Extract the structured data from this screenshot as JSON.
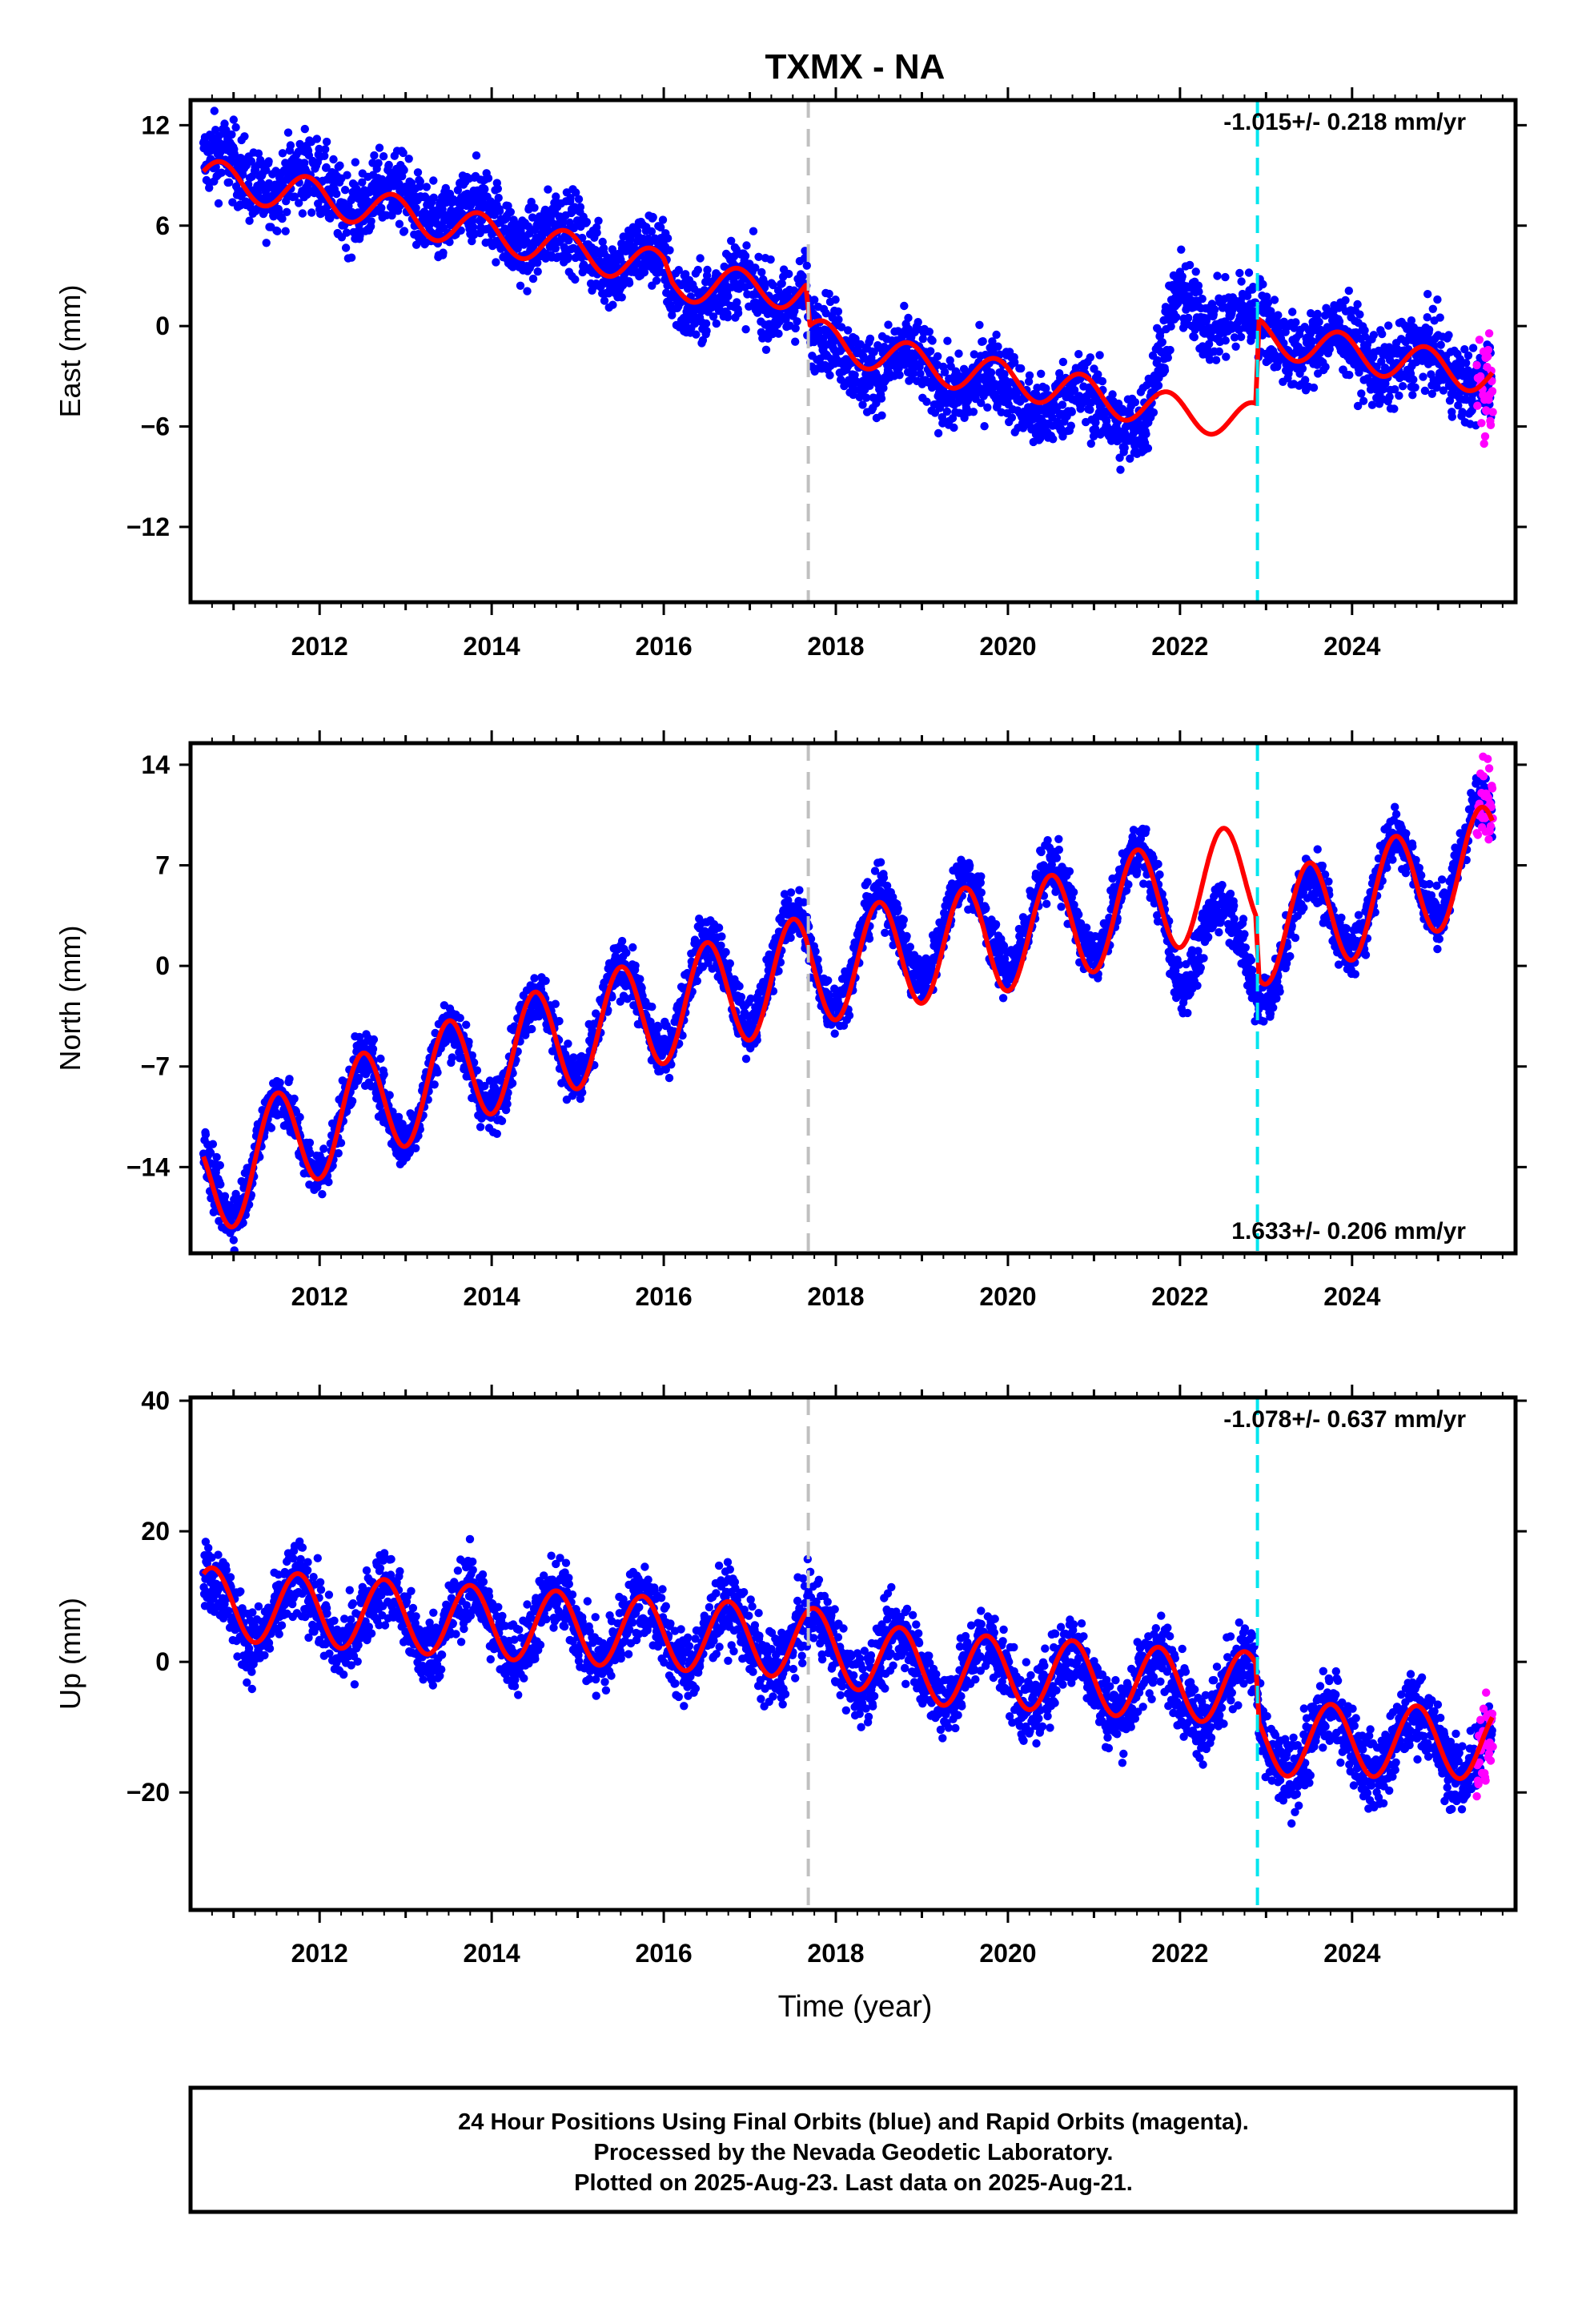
{
  "station_title": "TXMX - NA",
  "x_axis_label": "Time (year)",
  "footer": {
    "line1": "24 Hour Positions Using Final Orbits (blue) and Rapid Orbits (magenta).",
    "line2": "Processed by the Nevada Geodetic Laboratory.",
    "line3": "Plotted on 2025-Aug-23. Last data on 2025-Aug-21."
  },
  "colors": {
    "final_orbits": "#0000ff",
    "rapid_orbits": "#ff00ff",
    "model_fit": "#ff0000",
    "event_gray": "#c0c0c0",
    "event_cyan": "#00e5ee"
  },
  "chart_data": [
    {
      "type": "scatter",
      "component": "East",
      "ylabel": "East (mm)",
      "xlabel": "",
      "xlim": [
        2010.5,
        2025.9
      ],
      "ylim": [
        -16.5,
        13.5
      ],
      "x_ticks": [
        2012,
        2014,
        2016,
        2018,
        2020,
        2022,
        2024
      ],
      "y_ticks": [
        12,
        6,
        0,
        -6,
        -12
      ],
      "y_tick_labels": [
        "12",
        "6",
        "0",
        "−6",
        "−12"
      ],
      "rate_text": "-1.015+/- 0.218 mm/yr",
      "rate_position": "top-right",
      "vertical_lines": [
        {
          "x": 2017.68,
          "color": "gray",
          "style": "dashed"
        },
        {
          "x": 2022.9,
          "color": "cyan",
          "style": "dashed"
        }
      ],
      "data_range": [
        2010.65,
        2025.63
      ],
      "rapid_range": [
        2025.45,
        2025.64
      ],
      "noise_std_mm": 1.6,
      "series": [
        {
          "name": "Final Orbits",
          "color": "blue",
          "style": "points",
          "trend_x": [
            2010.65,
            2012.0,
            2014.0,
            2016.0,
            2016.1,
            2017.65,
            2017.7,
            2019.0,
            2020.5,
            2021.6,
            2022.0,
            2022.6,
            2022.88,
            2022.92,
            2024.0,
            2025.63
          ],
          "trend_y": [
            9.5,
            8.2,
            6.2,
            3.5,
            2.0,
            2.0,
            -1.0,
            -2.8,
            -4.5,
            -5.5,
            1.6,
            0.6,
            -0.3,
            -0.3,
            -1.5,
            -3.0
          ]
        },
        {
          "name": "Rapid Orbits",
          "color": "magenta",
          "style": "points"
        },
        {
          "name": "Model",
          "color": "red",
          "style": "line",
          "trend_x": [
            2010.65,
            2012.0,
            2014.0,
            2016.0,
            2016.1,
            2017.65,
            2017.7,
            2019.0,
            2020.5,
            2021.8,
            2022.88,
            2022.92,
            2024.0,
            2025.63
          ],
          "trend_y": [
            8.9,
            7.7,
            5.5,
            3.4,
            2.6,
            2.1,
            -0.6,
            -2.3,
            -3.6,
            -5.0,
            -5.7,
            -0.6,
            -1.6,
            -3.0
          ],
          "seasonal_amplitude_mm": 1.1,
          "seasonal_phase_year": 0.6
        }
      ]
    },
    {
      "type": "scatter",
      "component": "North",
      "ylabel": "North (mm)",
      "xlabel": "",
      "xlim": [
        2010.5,
        2025.9
      ],
      "ylim": [
        -20.0,
        15.5
      ],
      "x_ticks": [
        2012,
        2014,
        2016,
        2018,
        2020,
        2022,
        2024
      ],
      "y_ticks": [
        14,
        7,
        0,
        -7,
        -14
      ],
      "y_tick_labels": [
        "14",
        "7",
        "0",
        "−7",
        "−14"
      ],
      "rate_text": "1.633+/- 0.206 mm/yr",
      "rate_position": "bottom-right",
      "vertical_lines": [
        {
          "x": 2017.68,
          "color": "gray",
          "style": "dashed"
        },
        {
          "x": 2022.9,
          "color": "cyan",
          "style": "dashed"
        }
      ],
      "data_range": [
        2010.65,
        2025.63
      ],
      "rapid_range": [
        2025.45,
        2025.64
      ],
      "noise_std_mm": 1.3,
      "series": [
        {
          "name": "Final Orbits",
          "color": "blue",
          "style": "points",
          "trend_x": [
            2010.65,
            2012.0,
            2014.0,
            2016.0,
            2017.65,
            2017.7,
            2019.0,
            2020.5,
            2021.8,
            2022.0,
            2022.6,
            2022.88,
            2022.92,
            2024.0,
            2025.63
          ],
          "trend_y": [
            -15.0,
            -11.0,
            -6.5,
            -2.5,
            0.5,
            0.0,
            2.5,
            3.5,
            5.0,
            2.0,
            0.8,
            0.5,
            0.8,
            4.5,
            8.5
          ]
        },
        {
          "name": "Rapid Orbits",
          "color": "magenta",
          "style": "points"
        },
        {
          "name": "Model",
          "color": "red",
          "style": "line",
          "trend_x": [
            2010.65,
            2012.0,
            2014.0,
            2016.0,
            2017.65,
            2017.7,
            2019.0,
            2020.5,
            2021.8,
            2022.88,
            2022.92,
            2024.0,
            2025.63
          ],
          "trend_y": [
            -15.5,
            -11.0,
            -6.5,
            -3.0,
            -0.3,
            -0.3,
            1.2,
            2.5,
            4.8,
            6.3,
            2.4,
            4.2,
            7.5
          ],
          "seasonal_amplitude_mm": 3.8,
          "seasonal_phase_year": 0.25
        }
      ]
    },
    {
      "type": "scatter",
      "component": "Up",
      "ylabel": "Up (mm)",
      "xlabel": "Time (year)",
      "xlim": [
        2010.5,
        2025.9
      ],
      "ylim": [
        -38.0,
        40.5
      ],
      "x_ticks": [
        2012,
        2014,
        2016,
        2018,
        2020,
        2022,
        2024
      ],
      "y_ticks": [
        40,
        20,
        0,
        -20
      ],
      "y_tick_labels": [
        "40",
        "20",
        "0",
        "−20"
      ],
      "rate_text": "-1.078+/- 0.637 mm/yr",
      "rate_position": "top-right",
      "vertical_lines": [
        {
          "x": 2017.68,
          "color": "gray",
          "style": "dashed"
        },
        {
          "x": 2022.9,
          "color": "cyan",
          "style": "dashed"
        }
      ],
      "data_range": [
        2010.65,
        2025.63
      ],
      "rapid_range": [
        2025.45,
        2025.64
      ],
      "noise_std_mm": 4.0,
      "series": [
        {
          "name": "Final Orbits",
          "color": "blue",
          "style": "points",
          "trend_x": [
            2010.65,
            2014.0,
            2017.65,
            2019.0,
            2020.5,
            2022.0,
            2022.88,
            2022.92,
            2024.0,
            2025.63
          ],
          "trend_y": [
            8.0,
            6.0,
            3.0,
            -1.0,
            -2.5,
            -4.0,
            -4.5,
            -13.0,
            -12.0,
            -13.0
          ]
        },
        {
          "name": "Rapid Orbits",
          "color": "magenta",
          "style": "points"
        },
        {
          "name": "Model",
          "color": "red",
          "style": "line",
          "trend_x": [
            2010.65,
            2014.0,
            2017.65,
            2019.0,
            2020.5,
            2022.0,
            2022.88,
            2022.92,
            2024.0,
            2025.63
          ],
          "trend_y": [
            9.0,
            6.0,
            3.0,
            -1.0,
            -2.0,
            -3.5,
            -4.0,
            -12.0,
            -12.0,
            -12.5
          ],
          "seasonal_amplitude_mm": 5.5,
          "seasonal_phase_year": 0.5
        }
      ]
    }
  ]
}
